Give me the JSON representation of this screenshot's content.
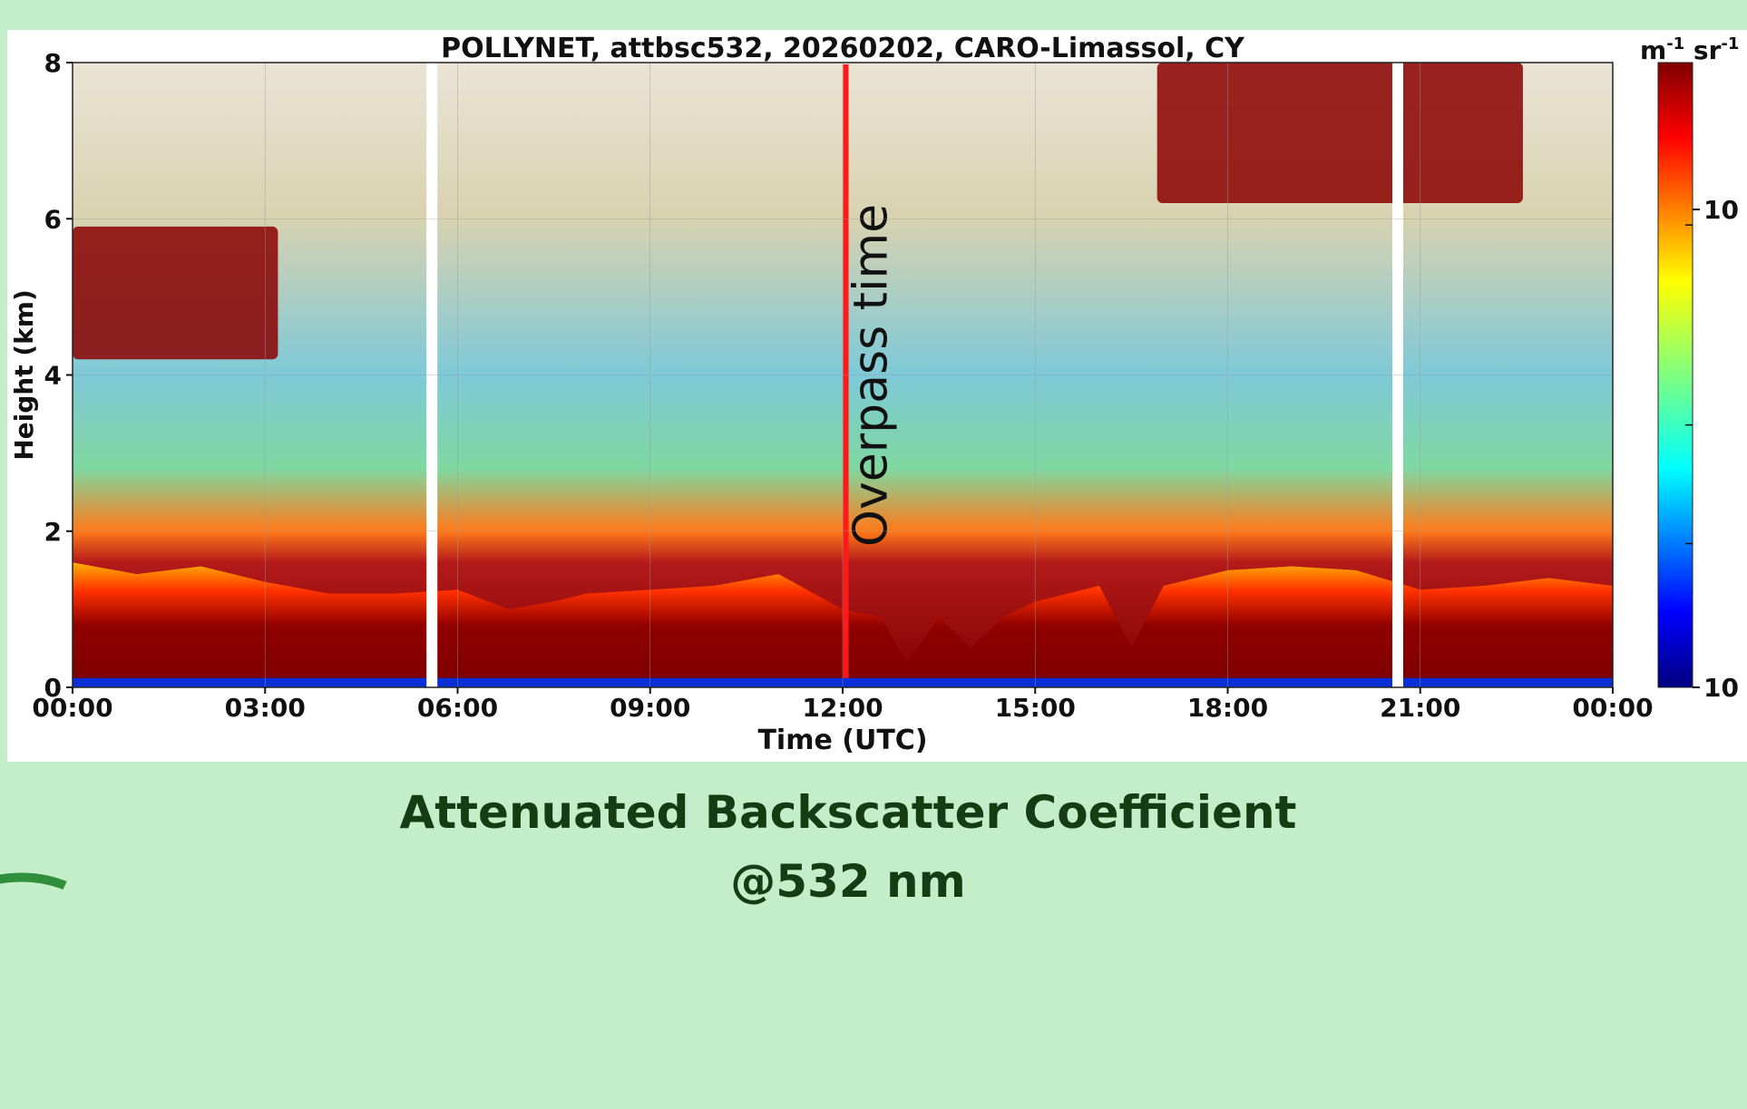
{
  "slide": {
    "caption_line1": "Attenuated Backscatter Coefficient",
    "caption_line2": "@532 nm"
  },
  "chart_data": {
    "type": "heatmap",
    "title": "POLLYNET, attbsc532, 20260202, CARO-Limassol, CY",
    "xlabel": "Time (UTC)",
    "ylabel": "Height (km)",
    "x_ticks": [
      "00:00",
      "03:00",
      "06:00",
      "09:00",
      "12:00",
      "15:00",
      "18:00",
      "21:00",
      "00:00"
    ],
    "y_ticks": [
      0,
      2,
      4,
      6,
      8
    ],
    "xlim_hours": [
      0,
      24
    ],
    "ylim_km": [
      0,
      8
    ],
    "colorbar": {
      "unit_label": "m-1 sr-1",
      "unit_base": "m",
      "unit_exp1": "-1",
      "unit_mid": " sr",
      "unit_exp2": "-1",
      "tick_labels": [
        "10",
        "10"
      ],
      "colormap": "jet"
    },
    "grid": true,
    "annotation": {
      "text": "Overpass time",
      "time_hours": 12.05,
      "color": "#ff1a1a"
    },
    "data_gaps_hours": [
      5.6,
      20.65
    ],
    "boundary_layer_top_km": [
      [
        0,
        1.6
      ],
      [
        1,
        1.45
      ],
      [
        2,
        1.55
      ],
      [
        3,
        1.35
      ],
      [
        4,
        1.2
      ],
      [
        5,
        1.2
      ],
      [
        6,
        1.25
      ],
      [
        6.8,
        1.0
      ],
      [
        7.5,
        1.1
      ],
      [
        8,
        1.2
      ],
      [
        9,
        1.25
      ],
      [
        10,
        1.3
      ],
      [
        11,
        1.45
      ],
      [
        12,
        1.0
      ],
      [
        12.6,
        0.9
      ],
      [
        13,
        0.3
      ],
      [
        13.5,
        0.9
      ],
      [
        14,
        0.5
      ],
      [
        14.5,
        0.9
      ],
      [
        15,
        1.1
      ],
      [
        16,
        1.3
      ],
      [
        16.5,
        0.5
      ],
      [
        17,
        1.3
      ],
      [
        18,
        1.5
      ],
      [
        19,
        1.55
      ],
      [
        20,
        1.5
      ],
      [
        21,
        1.25
      ],
      [
        22,
        1.3
      ],
      [
        23,
        1.4
      ],
      [
        24,
        1.3
      ]
    ],
    "cloud_layers": [
      {
        "time_start_hours": 0.0,
        "time_end_hours": 3.2,
        "base_km": 4.2,
        "top_km": 5.9
      },
      {
        "time_start_hours": 16.9,
        "time_end_hours": 22.6,
        "base_km": 6.2,
        "top_km": 8.0
      }
    ]
  }
}
